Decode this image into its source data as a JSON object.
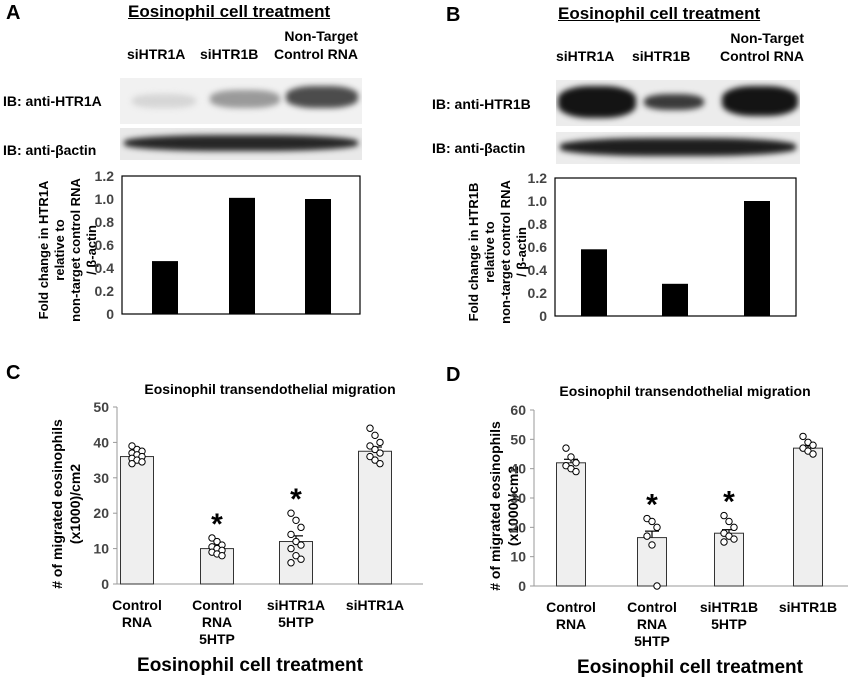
{
  "panels": {
    "A": {
      "letter": "A",
      "heading": "Eosinophil  cell treatment",
      "lanes": [
        "siHTR1A",
        "siHTR1B"
      ],
      "lane3": [
        "Non-Target",
        "Control  RNA"
      ],
      "blots": [
        "IB: anti-HTR1A",
        "IB: anti-βactin"
      ]
    },
    "B": {
      "letter": "B",
      "heading": "Eosinophil  cell treatment",
      "lanes": [
        "siHTR1A",
        "siHTR1B"
      ],
      "lane3": [
        "Non-Target",
        "Control  RNA"
      ],
      "blots": [
        "IB: anti-HTR1B",
        "IB: anti-βactin"
      ]
    },
    "C": {
      "letter": "C",
      "xlabel": "Eosinophil  cell treatment"
    },
    "D": {
      "letter": "D",
      "xlabel": "Eosinophil  cell treatment"
    }
  },
  "chart_data": [
    {
      "id": "A",
      "type": "bar",
      "ylabel_lines": [
        "Fold change in HTR1A",
        "relative to",
        "non-target control RNA",
        "/ β-actin"
      ],
      "categories": [
        "siHTR1A",
        "siHTR1B",
        "Non-Target Control RNA"
      ],
      "values": [
        0.46,
        1.01,
        1.0
      ],
      "yticks": [
        "1.2",
        "1.0",
        "0.8",
        "0.6",
        "0.4",
        "0.2",
        "0"
      ],
      "ylim": [
        0,
        1.2
      ]
    },
    {
      "id": "B",
      "type": "bar",
      "ylabel_lines": [
        "Fold change in HTR1B",
        "relative to",
        "non-target control RNA",
        "/ β-actin"
      ],
      "categories": [
        "siHTR1A",
        "siHTR1B",
        "Non-Target Control RNA"
      ],
      "values": [
        0.58,
        0.28,
        1.0
      ],
      "yticks": [
        "1.2",
        "1.0",
        "0.8",
        "0.6",
        "0.4",
        "0.2",
        "0"
      ],
      "ylim": [
        0,
        1.2
      ]
    },
    {
      "id": "C",
      "type": "bar",
      "title": "Eosinophil transendothelial migration",
      "ylabel_lines": [
        "# of migrated eosinophils",
        "(x1000)/cm2"
      ],
      "categories": [
        [
          "Control",
          "RNA"
        ],
        [
          "Control",
          "RNA",
          "5HTP"
        ],
        [
          "siHTR1A",
          "5HTP"
        ],
        [
          "siHTR1A"
        ]
      ],
      "values": [
        36,
        10,
        12,
        37.5
      ],
      "errors": [
        0.8,
        0.8,
        1.6,
        1.2
      ],
      "points": [
        [
          39,
          38,
          37.5,
          37,
          36.5,
          36,
          35.5,
          35,
          34.5,
          34
        ],
        [
          13,
          12,
          11,
          10.5,
          10,
          9.5,
          9,
          8.5,
          8
        ],
        [
          20,
          18,
          16,
          14,
          12,
          11,
          10,
          8,
          7,
          6
        ],
        [
          44,
          42,
          40,
          39,
          38,
          37,
          36,
          35,
          34
        ]
      ],
      "significant": [
        "",
        "*",
        "*",
        ""
      ],
      "yticks": [
        "50",
        "40",
        "30",
        "20",
        "10",
        "0"
      ],
      "ylim": [
        0,
        50
      ]
    },
    {
      "id": "D",
      "type": "bar",
      "title": "Eosinophil transendothelial migration",
      "ylabel_lines": [
        "# of migrated eosinophils",
        "(x1000)/cm2"
      ],
      "categories": [
        [
          "Control",
          "RNA"
        ],
        [
          "Control",
          "RNA",
          "5HTP"
        ],
        [
          "siHTR1B",
          "5HTP"
        ],
        [
          "siHTR1B"
        ]
      ],
      "values": [
        42,
        16.5,
        18,
        47
      ],
      "errors": [
        1.2,
        2.2,
        1.2,
        0.8
      ],
      "points": [
        [
          47,
          44,
          42,
          41,
          40,
          39
        ],
        [
          23,
          22,
          20,
          17,
          14,
          0
        ],
        [
          24,
          22,
          20,
          18,
          17,
          16,
          15
        ],
        [
          51,
          49,
          48,
          47,
          46,
          45
        ]
      ],
      "significant": [
        "",
        "*",
        "*",
        ""
      ],
      "yticks": [
        "60",
        "50",
        "40",
        "30",
        "20",
        "10",
        "0"
      ],
      "ylim": [
        0,
        60
      ]
    }
  ]
}
